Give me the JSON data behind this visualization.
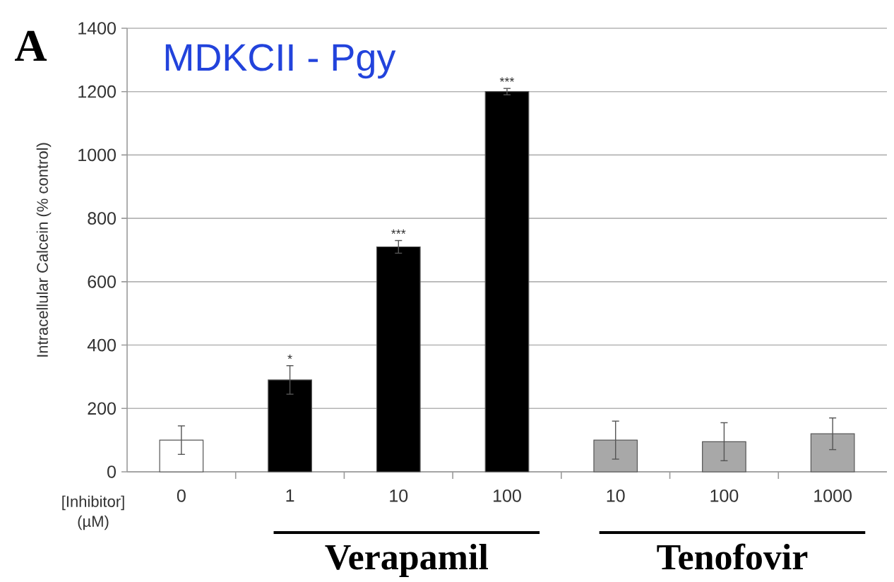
{
  "chart_data": {
    "type": "bar",
    "title": "MDKCII - Pgy",
    "xlabel": "[Inhibitor] (µM)",
    "ylabel": "Intracellular Calcein (% control)",
    "categories": [
      "0",
      "1",
      "10",
      "100",
      "10",
      "100",
      "1000"
    ],
    "values": [
      100,
      290,
      710,
      1200,
      100,
      95,
      120
    ],
    "errors": [
      45,
      45,
      20,
      10,
      60,
      60,
      50
    ],
    "colors": [
      "#ffffff",
      "#000000",
      "#000000",
      "#000000",
      "#a8a8a8",
      "#a8a8a8",
      "#a8a8a8"
    ],
    "value_labels": [
      null,
      "*",
      "***",
      "***",
      null,
      null,
      null
    ],
    "ylim": [
      0,
      1400
    ],
    "yticks": [
      0,
      200,
      400,
      600,
      800,
      1000,
      1200,
      1400
    ],
    "grid": "y",
    "annotations": [
      "A",
      "Verapamil",
      "Tenofovir"
    ]
  }
}
